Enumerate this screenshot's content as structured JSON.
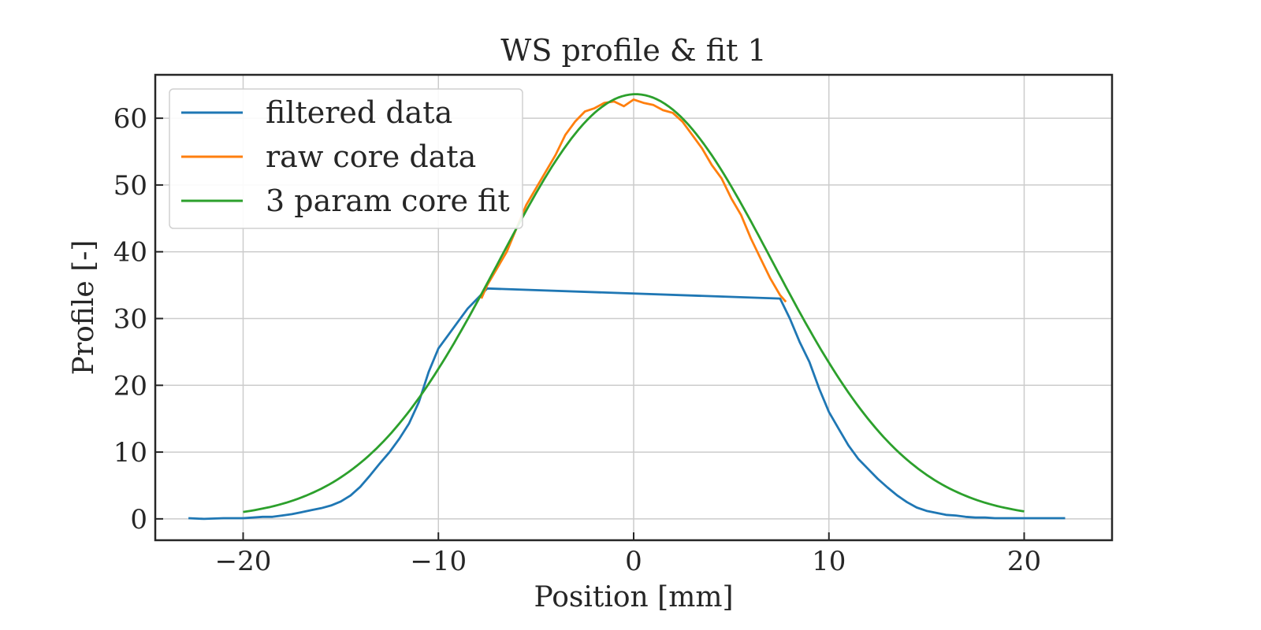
{
  "chart_data": {
    "type": "line",
    "title": "WS profile & fit 1",
    "xlabel": "Position [mm]",
    "ylabel": "Profile [-]",
    "xlim": [
      -24.5,
      24.5
    ],
    "ylim": [
      -3.2,
      66.5
    ],
    "xticks": [
      -20,
      -10,
      0,
      10,
      20
    ],
    "xtick_labels": [
      "−20",
      "−10",
      "0",
      "10",
      "20"
    ],
    "yticks": [
      0,
      10,
      20,
      30,
      40,
      50,
      60
    ],
    "ytick_labels": [
      "0",
      "10",
      "20",
      "30",
      "40",
      "50",
      "60"
    ],
    "grid": true,
    "legend_position": "upper-left",
    "series": [
      {
        "name": "filtered data",
        "color": "#1f77b4",
        "x": [
          -22.8,
          -22,
          -21,
          -20,
          -19.5,
          -19,
          -18.5,
          -18,
          -17.5,
          -17,
          -16.5,
          -16,
          -15.5,
          -15,
          -14.5,
          -14,
          -13.5,
          -13,
          -12.5,
          -12,
          -11.5,
          -11,
          -10.5,
          -10,
          -9.5,
          -9,
          -8.5,
          -8,
          -7.5,
          7.5,
          8,
          8.5,
          9,
          9.5,
          10,
          10.5,
          11,
          11.5,
          12,
          12.5,
          13,
          13.5,
          14,
          14.5,
          15,
          15.5,
          16,
          16.5,
          17,
          17.5,
          18,
          18.5,
          19,
          19.5,
          20,
          21,
          22.1
        ],
        "y": [
          0.1,
          0.0,
          0.1,
          0.1,
          0.2,
          0.3,
          0.3,
          0.5,
          0.7,
          1.0,
          1.3,
          1.6,
          2.0,
          2.6,
          3.5,
          4.8,
          6.5,
          8.3,
          10.0,
          12.0,
          14.3,
          17.5,
          22.0,
          25.5,
          27.5,
          29.5,
          31.5,
          33.0,
          34.5,
          33.0,
          30.0,
          26.5,
          23.5,
          19.5,
          16.0,
          13.5,
          11.0,
          9.0,
          7.5,
          6.0,
          4.7,
          3.5,
          2.5,
          1.7,
          1.2,
          0.9,
          0.6,
          0.5,
          0.3,
          0.2,
          0.2,
          0.1,
          0.1,
          0.1,
          0.1,
          0.1,
          0.1
        ]
      },
      {
        "name": "raw core data",
        "color": "#ff7f0e",
        "x": [
          -7.8,
          -7.5,
          -7,
          -6.5,
          -6,
          -5.5,
          -5,
          -4.5,
          -4,
          -3.5,
          -3,
          -2.5,
          -2,
          -1.5,
          -1,
          -0.5,
          0,
          0.5,
          1,
          1.5,
          2,
          2.5,
          3,
          3.5,
          4,
          4.5,
          5,
          5.5,
          6,
          6.5,
          7,
          7.5,
          7.8
        ],
        "y": [
          33.0,
          35.0,
          37.5,
          40.0,
          43.5,
          47.0,
          49.5,
          52.0,
          54.5,
          57.5,
          59.5,
          61.0,
          61.5,
          62.3,
          62.5,
          61.8,
          62.8,
          62.3,
          62.0,
          61.2,
          60.8,
          59.5,
          57.5,
          55.5,
          53.0,
          51.0,
          48.0,
          45.5,
          42.0,
          39.0,
          36.0,
          33.5,
          32.5
        ]
      },
      {
        "name": "3 param core fit",
        "color": "#2ca02c",
        "fit": {
          "form": "gaussian",
          "amplitude": 63.6,
          "center": 0.1,
          "sigma": 7.0
        },
        "x_range": [
          -20,
          20
        ]
      }
    ]
  }
}
